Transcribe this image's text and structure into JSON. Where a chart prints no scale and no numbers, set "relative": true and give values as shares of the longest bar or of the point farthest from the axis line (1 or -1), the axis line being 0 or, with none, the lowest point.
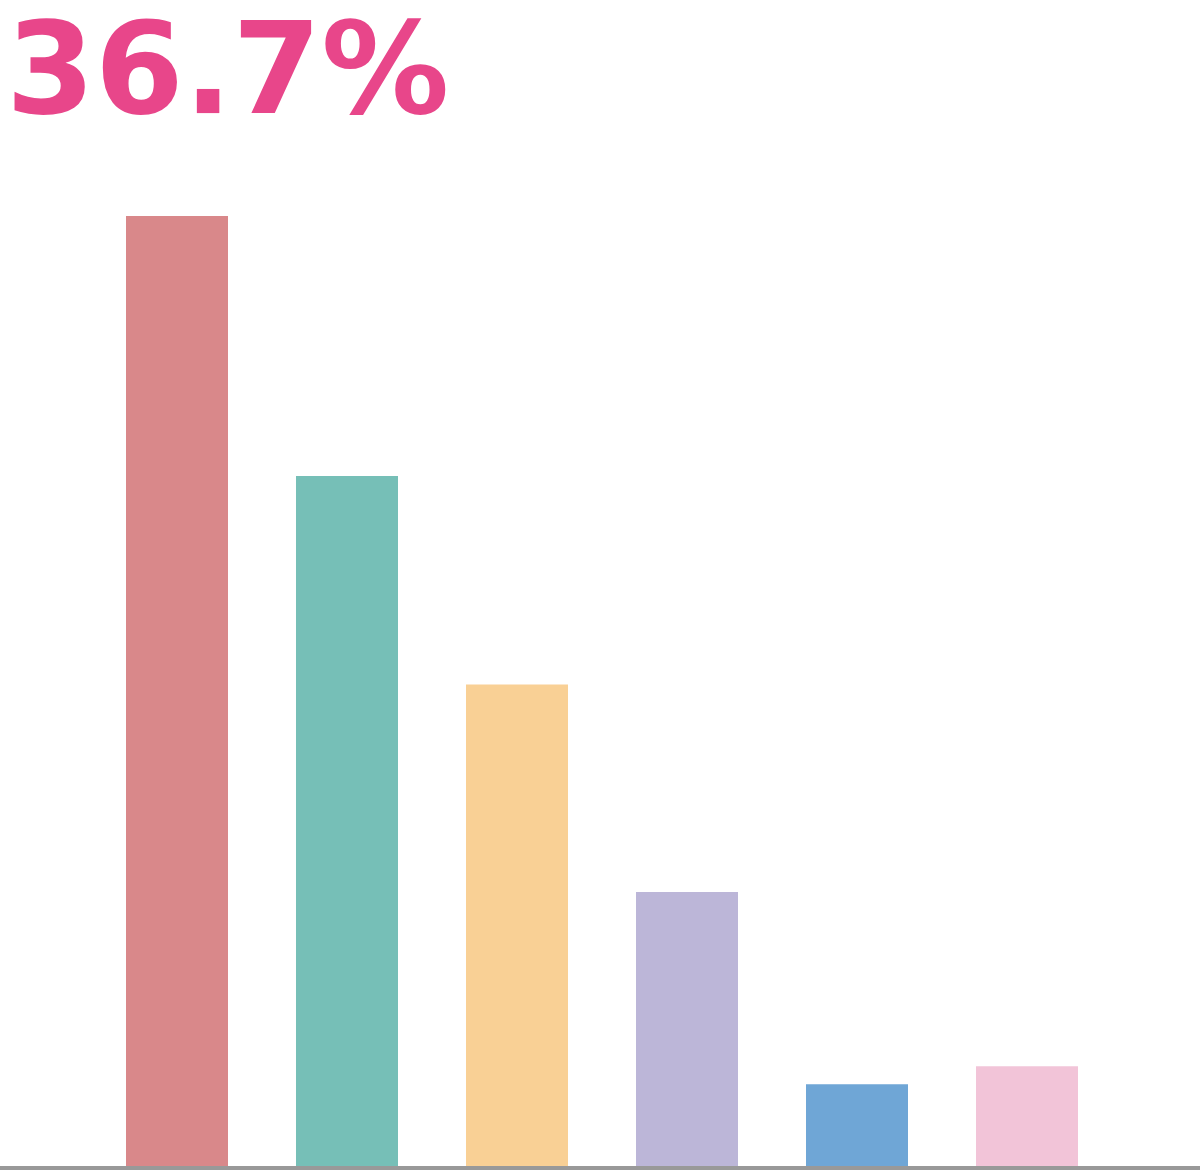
{
  "chart_data": {
    "type": "bar",
    "relative": true,
    "categories": [
      null,
      null,
      null,
      null,
      null,
      null
    ],
    "values": [
      1,
      0.727,
      0.508,
      0.29,
      0.088,
      0.107
    ],
    "colors": [
      "#d9888a",
      "#76bfb7",
      "#f9d095",
      "#bcb6d8",
      "#6fa6d6",
      "#f2c4d8"
    ],
    "annotations": [
      "36.7%"
    ],
    "grid": false,
    "legend": false
  }
}
